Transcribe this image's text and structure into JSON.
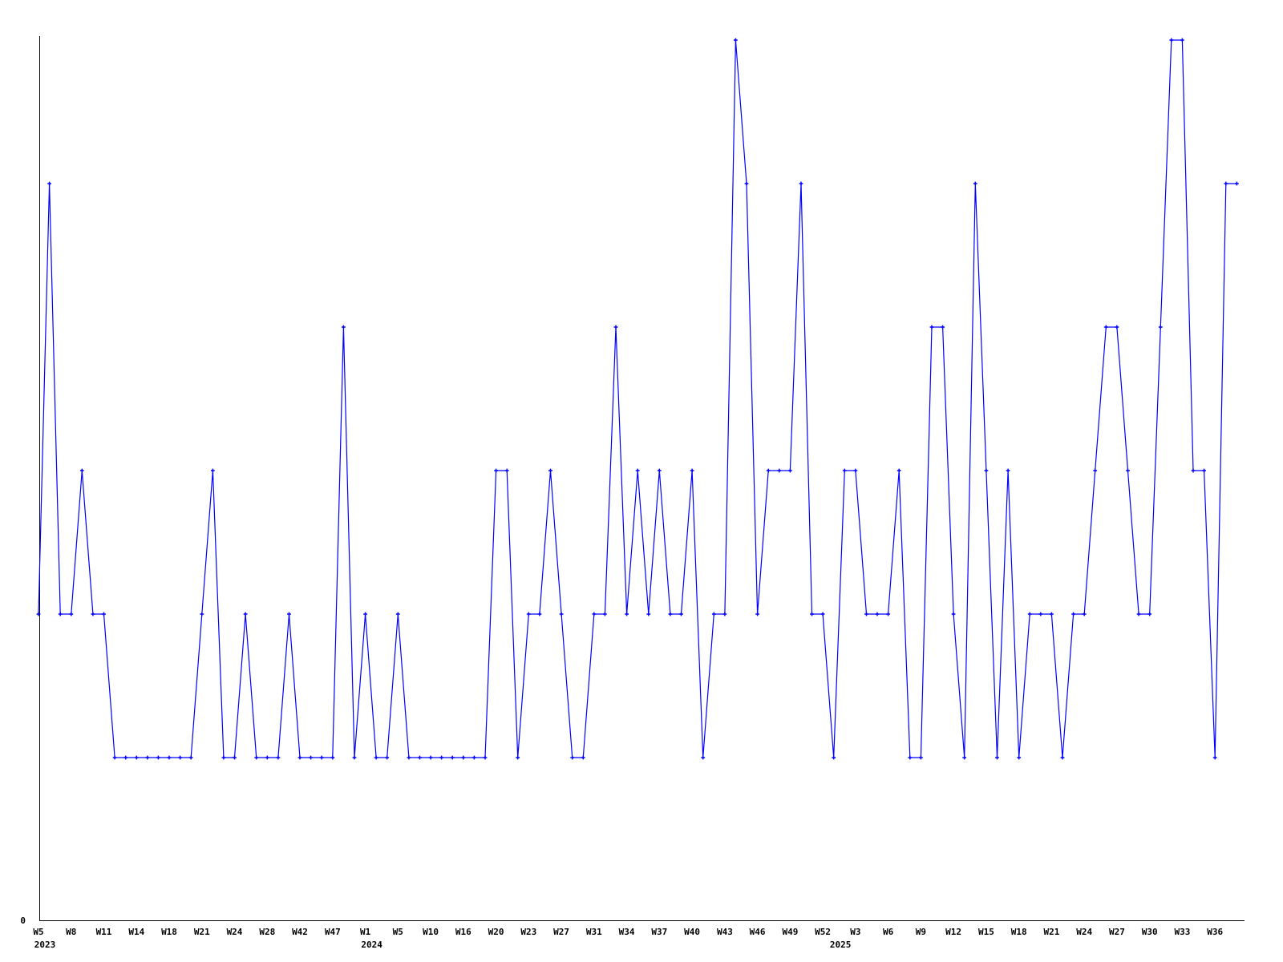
{
  "page": {
    "background_color": "#ffffff",
    "axis_color": "#000000",
    "y_origin_label": "0"
  },
  "chart_data": {
    "type": "line",
    "title": "",
    "xlabel": "",
    "ylabel": "",
    "grid": false,
    "legend": "none",
    "ylim": [
      0,
      6
    ],
    "y_origin_label": "0",
    "x_axis_kind": "weekly categories, every 3rd category labeled",
    "x_tick_step": 3,
    "x_tick_labels": [
      "W5",
      "W8",
      "W11",
      "W14",
      "W18",
      "W21",
      "W24",
      "W28",
      "W42",
      "W47",
      "W1",
      "W5",
      "W10",
      "W16",
      "W20",
      "W23",
      "W27",
      "W31",
      "W34",
      "W37",
      "W40",
      "W43",
      "W46",
      "W49",
      "W52",
      "W3",
      "W6",
      "W9",
      "W12",
      "W15",
      "W18",
      "W21",
      "W24",
      "W27",
      "W30",
      "W33",
      "W36"
    ],
    "year_labels": [
      {
        "text": "2023",
        "tick_index": 0
      },
      {
        "text": "2024",
        "tick_index": 10
      },
      {
        "text": "2025",
        "tick_index": 24
      }
    ],
    "series": [
      {
        "name": "",
        "color": "#0000ff",
        "marker": "plus",
        "values": [
          2,
          5,
          2,
          2,
          3,
          2,
          2,
          1,
          1,
          1,
          1,
          1,
          1,
          1,
          1,
          2,
          3,
          1,
          1,
          2,
          1,
          1,
          1,
          2,
          1,
          1,
          1,
          1,
          4,
          1,
          2,
          1,
          1,
          2,
          1,
          1,
          1,
          1,
          1,
          1,
          1,
          1,
          3,
          3,
          1,
          2,
          2,
          3,
          2,
          1,
          1,
          2,
          2,
          4,
          2,
          3,
          2,
          3,
          2,
          2,
          3,
          1,
          2,
          2,
          6,
          5,
          2,
          3,
          3,
          3,
          5,
          2,
          2,
          1,
          3,
          3,
          2,
          2,
          2,
          3,
          1,
          1,
          4,
          4,
          2,
          1,
          5,
          3,
          1,
          3,
          1,
          2,
          2,
          2,
          1,
          2,
          2,
          3,
          4,
          4,
          3,
          2,
          2,
          4,
          6,
          6,
          3,
          3,
          1,
          5,
          5
        ]
      }
    ]
  }
}
